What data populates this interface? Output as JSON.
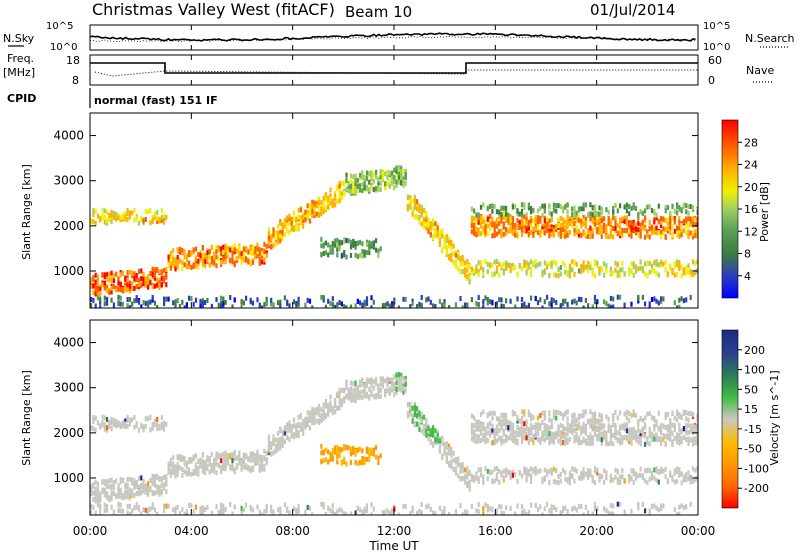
{
  "header": {
    "radar": "Christmas Valley West (fitACF)",
    "beam": "Beam 10",
    "date": "01/Jul/2014"
  },
  "noise_panel": {
    "left_label": "N.Sky",
    "right_label": "N.Search",
    "left_ticks": [
      "10^5",
      "10^0"
    ],
    "right_ticks": [
      "10^5",
      "10^0"
    ]
  },
  "freq_panel": {
    "left_label_line1": "Freq.",
    "left_label_line2": "[MHz]",
    "right_label": "Nave",
    "left_ticks": [
      "18",
      "8"
    ],
    "right_ticks": [
      "60",
      "0"
    ]
  },
  "cpid": {
    "label": "CPID",
    "mode": "normal (fast) 151 IF"
  },
  "x_axis": {
    "title": "Time UT",
    "ticks": [
      "00:00",
      "04:00",
      "08:00",
      "12:00",
      "16:00",
      "20:00",
      "00:00"
    ]
  },
  "power_panel": {
    "ylabel": "Slant Range [km]",
    "yticks": [
      "1000",
      "2000",
      "3000",
      "4000"
    ],
    "colorbar_label": "Power [dB]",
    "colorbar_ticks": [
      "28",
      "24",
      "20",
      "16",
      "12",
      "8",
      "4"
    ]
  },
  "velocity_panel": {
    "ylabel": "Slant Range [km]",
    "yticks": [
      "1000",
      "2000",
      "3000",
      "4000"
    ],
    "colorbar_label": "Velocity [m s^-1]",
    "colorbar_ticks": [
      "200",
      "100",
      "50",
      "15",
      "-15",
      "-50",
      "-100",
      "-200"
    ]
  },
  "colors": {
    "power_scale": [
      "#0000ff",
      "#2a3cc0",
      "#3d7d3d",
      "#58a058",
      "#a0d060",
      "#f0f000",
      "#ffb000",
      "#ff6000",
      "#ff0000"
    ],
    "velocity_scale": [
      "#ff0000",
      "#ff6600",
      "#ff9900",
      "#ffbb00",
      "#c8c8c0",
      "#44bb44",
      "#2a7a5a",
      "#2a3c90",
      "#1a2a80"
    ]
  },
  "chart_data": {
    "type": "heatmap",
    "x_unit": "hours UT",
    "xlim": [
      0,
      24
    ],
    "ylim_km": [
      180,
      4500
    ],
    "power_echo_bands": [
      {
        "start": 0,
        "end": 3,
        "center_start": 700,
        "center_end": 850,
        "value_db": 26
      },
      {
        "start": 3,
        "end": 7,
        "center_start": 1250,
        "center_end": 1400,
        "value_db": 24
      },
      {
        "start": 7,
        "end": 10,
        "center_start": 1700,
        "center_end": 2800,
        "value_db": 22
      },
      {
        "start": 10,
        "end": 12.5,
        "center_start": 2900,
        "center_end": 3100,
        "value_db": 14
      },
      {
        "start": 12.5,
        "end": 15,
        "center_start": 2600,
        "center_end": 900,
        "value_db": 20
      },
      {
        "start": 15,
        "end": 24,
        "center_start": 2000,
        "center_end": 1950,
        "value_db": 24
      }
    ]
  }
}
